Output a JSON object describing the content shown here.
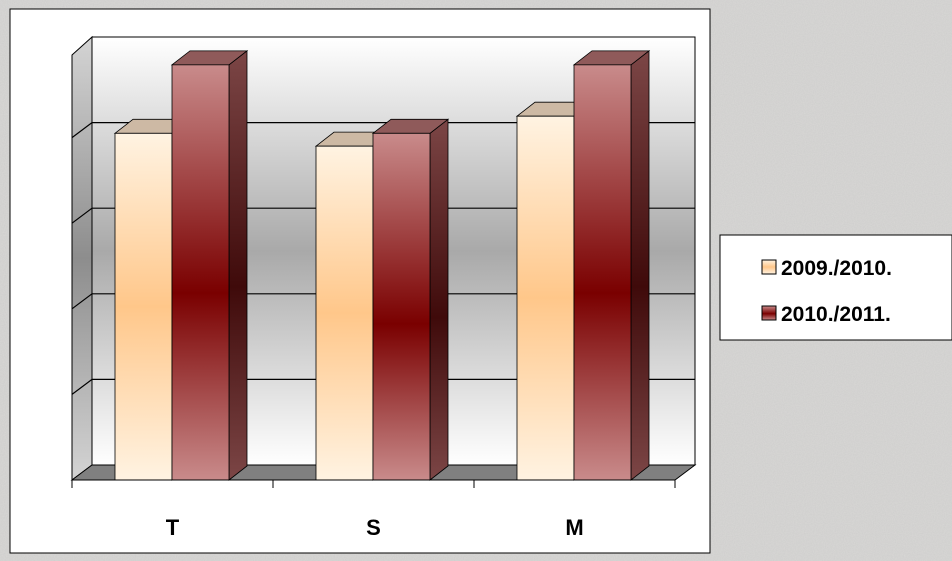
{
  "chart_data": {
    "type": "bar",
    "categories": [
      "T",
      "S",
      "M"
    ],
    "series": [
      {
        "name": "2009./2010.",
        "values": [
          4.05,
          3.9,
          4.25
        ],
        "color": "#ffd7a6"
      },
      {
        "name": "2010./2011.",
        "values": [
          4.85,
          4.05,
          4.85
        ],
        "color": "#8b1a1a"
      }
    ],
    "ylim": [
      0,
      5
    ],
    "grid": true,
    "legend_position": "right",
    "title": "",
    "xlabel": "",
    "ylabel": ""
  }
}
